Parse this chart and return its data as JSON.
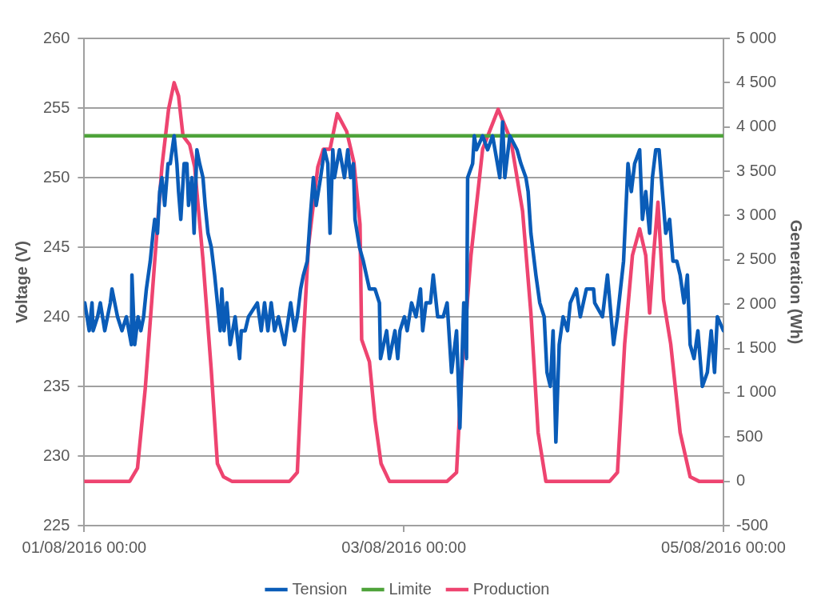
{
  "chart_data": {
    "type": "line",
    "ylabel": "Voltage (V)",
    "y2label": "Generation (Wh)",
    "xlim": [
      "2016-08-01T00:00",
      "2016-08-05T00:00"
    ],
    "xticks": [
      {
        "value": "2016-08-01T00:00",
        "label": "01/08/2016 00:00"
      },
      {
        "value": "2016-08-03T00:00",
        "label": "03/08/2016 00:00"
      },
      {
        "value": "2016-08-05T00:00",
        "label": "05/08/2016 00:00"
      }
    ],
    "ylim": [
      225,
      260
    ],
    "yticks": [
      225,
      230,
      235,
      240,
      245,
      250,
      255,
      260
    ],
    "y2lim": [
      -500,
      5000
    ],
    "y2ticks": [
      -500,
      0,
      500,
      {
        "value": 1000,
        "label": "1 000"
      },
      {
        "value": 1500,
        "label": "1 500"
      },
      {
        "value": 2000,
        "label": "2 000"
      },
      {
        "value": 2500,
        "label": "2 500"
      },
      {
        "value": 3000,
        "label": "3 000"
      },
      {
        "value": 3500,
        "label": "3 500"
      },
      {
        "value": 4000,
        "label": "4 000"
      },
      {
        "value": 4500,
        "label": "4 500"
      },
      {
        "value": 5000,
        "label": "5 000"
      }
    ],
    "grid": "y",
    "legend": "bottom",
    "marker": "none",
    "line_style": "solid",
    "series": [
      {
        "name": "Tension",
        "color": "#0a5cb8",
        "x": [
          "2016-08-01T00:05",
          "2016-08-01T00:45",
          "2016-08-01T01:10",
          "2016-08-01T01:20",
          "2016-08-01T02:00",
          "2016-08-01T02:25",
          "2016-08-01T03:05",
          "2016-08-01T03:30",
          "2016-08-01T03:55",
          "2016-08-01T04:10",
          "2016-08-01T04:35",
          "2016-08-01T05:00",
          "2016-08-01T05:40",
          "2016-08-01T06:20",
          "2016-08-01T07:05",
          "2016-08-01T07:10",
          "2016-08-01T07:35",
          "2016-08-01T08:05",
          "2016-08-01T08:30",
          "2016-08-01T08:55",
          "2016-08-01T09:20",
          "2016-08-01T09:55",
          "2016-08-01T10:20",
          "2016-08-01T10:35",
          "2016-08-01T11:00",
          "2016-08-01T11:20",
          "2016-08-01T11:40",
          "2016-08-01T12:05",
          "2016-08-01T12:35",
          "2016-08-01T12:55",
          "2016-08-01T13:30",
          "2016-08-01T13:55",
          "2016-08-01T14:10",
          "2016-08-01T14:30",
          "2016-08-01T15:00",
          "2016-08-01T15:25",
          "2016-08-01T15:40",
          "2016-08-01T16:10",
          "2016-08-01T16:30",
          "2016-08-01T16:55",
          "2016-08-01T17:20",
          "2016-08-01T17:50",
          "2016-08-01T18:10",
          "2016-08-01T18:35",
          "2016-08-01T19:05",
          "2016-08-01T19:35",
          "2016-08-01T20:25",
          "2016-08-01T20:40",
          "2016-08-01T21:00",
          "2016-08-01T21:25",
          "2016-08-01T21:55",
          "2016-08-01T22:40",
          "2016-08-01T23:20",
          "2016-08-01T23:35",
          "2016-08-02T00:10",
          "2016-08-02T00:40",
          "2016-08-02T02:00",
          "2016-08-02T02:35",
          "2016-08-02T03:05",
          "2016-08-02T03:35",
          "2016-08-02T04:05",
          "2016-08-02T04:35",
          "2016-08-02T05:10",
          "2016-08-02T06:05",
          "2016-08-02T07:00",
          "2016-08-02T07:35",
          "2016-08-02T08:00",
          "2016-08-02T08:30",
          "2016-08-02T08:55",
          "2016-08-02T09:30",
          "2016-08-02T09:55",
          "2016-08-02T10:25",
          "2016-08-02T10:50",
          "2016-08-02T11:30",
          "2016-08-02T12:05",
          "2016-08-02T12:35",
          "2016-08-02T12:55",
          "2016-08-02T13:20",
          "2016-08-02T13:35",
          "2016-08-02T14:20",
          "2016-08-02T15:05",
          "2016-08-02T15:35",
          "2016-08-02T16:00",
          "2016-08-02T16:25",
          "2016-08-02T16:40",
          "2016-08-02T17:20",
          "2016-08-02T17:55",
          "2016-08-02T18:50",
          "2016-08-02T19:40",
          "2016-08-02T20:20",
          "2016-08-02T20:30",
          "2016-08-02T21:25",
          "2016-08-02T21:50",
          "2016-08-02T22:40",
          "2016-08-02T23:05",
          "2016-08-02T23:25",
          "2016-08-03T00:05",
          "2016-08-03T00:30",
          "2016-08-03T01:10",
          "2016-08-03T01:50",
          "2016-08-03T02:30",
          "2016-08-03T02:50",
          "2016-08-03T03:20",
          "2016-08-03T04:00",
          "2016-08-03T04:25",
          "2016-08-03T05:05",
          "2016-08-03T05:55",
          "2016-08-03T06:30",
          "2016-08-03T07:10",
          "2016-08-03T07:55",
          "2016-08-03T08:25",
          "2016-08-03T09:00",
          "2016-08-03T09:25",
          "2016-08-03T09:35",
          "2016-08-03T10:20",
          "2016-08-03T10:35",
          "2016-08-03T10:55",
          "2016-08-03T11:50",
          "2016-08-03T12:35",
          "2016-08-03T13:20",
          "2016-08-03T14:25",
          "2016-08-03T14:50",
          "2016-08-03T15:10",
          "2016-08-03T15:55",
          "2016-08-03T17:00",
          "2016-08-03T17:35",
          "2016-08-03T18:20",
          "2016-08-03T18:40",
          "2016-08-03T19:05",
          "2016-08-03T19:50",
          "2016-08-03T20:25",
          "2016-08-03T21:05",
          "2016-08-03T21:30",
          "2016-08-03T22:00",
          "2016-08-03T22:25",
          "2016-08-03T22:50",
          "2016-08-03T23:20",
          "2016-08-03T23:55",
          "2016-08-04T00:35",
          "2016-08-04T01:00",
          "2016-08-04T01:55",
          "2016-08-04T02:30",
          "2016-08-04T03:25",
          "2016-08-04T04:30",
          "2016-08-04T04:40",
          "2016-08-04T05:50",
          "2016-08-04T06:35",
          "2016-08-04T07:30",
          "2016-08-04T08:05",
          "2016-08-04T09:00",
          "2016-08-04T09:40",
          "2016-08-04T10:10",
          "2016-08-04T10:40",
          "2016-08-04T11:25",
          "2016-08-04T11:50",
          "2016-08-04T12:20",
          "2016-08-04T12:55",
          "2016-08-04T13:20",
          "2016-08-04T13:50",
          "2016-08-04T14:20",
          "2016-08-04T14:40",
          "2016-08-04T15:20",
          "2016-08-04T15:55",
          "2016-08-04T16:25",
          "2016-08-04T17:00",
          "2016-08-04T17:30",
          "2016-08-04T18:05",
          "2016-08-04T18:35",
          "2016-08-04T19:00",
          "2016-08-04T19:35",
          "2016-08-04T20:10",
          "2016-08-04T20:50",
          "2016-08-04T21:35",
          "2016-08-04T22:10",
          "2016-08-04T22:40",
          "2016-08-04T23:05",
          "2016-08-05T00:00"
        ],
        "values": [
          241,
          239,
          241,
          239,
          240,
          241,
          239,
          240,
          241,
          242,
          241,
          240,
          239,
          240,
          238,
          243,
          238,
          240,
          239,
          240,
          242,
          244,
          246,
          247,
          246,
          249,
          250,
          248,
          251,
          251,
          253,
          251,
          249,
          247,
          251,
          251,
          248,
          250,
          246,
          252,
          251,
          250,
          248,
          246,
          245,
          243,
          239,
          242,
          239,
          241,
          238,
          240,
          237,
          239,
          239,
          240,
          241,
          239,
          241,
          239,
          241,
          239,
          240,
          238,
          241,
          239,
          240,
          242,
          243,
          244,
          247,
          250,
          248,
          250,
          252,
          251,
          246,
          252,
          250,
          252,
          250,
          252,
          250,
          251,
          247,
          245,
          244,
          242,
          242,
          241,
          237,
          239,
          237,
          239,
          237,
          239,
          240,
          239,
          241,
          240,
          242,
          239,
          241,
          241,
          243,
          240,
          240,
          241,
          236,
          239,
          232,
          241,
          237,
          250,
          251,
          253,
          252,
          253,
          252,
          253,
          250,
          254,
          250,
          253,
          252,
          251,
          250,
          249,
          246,
          243,
          241,
          240,
          236,
          235,
          239,
          231,
          238,
          240,
          239,
          241,
          242,
          240,
          242,
          242,
          241,
          240,
          243,
          238,
          240,
          244,
          251,
          249,
          251,
          252,
          247,
          249,
          246,
          250,
          252,
          252,
          250,
          246,
          247,
          244,
          244,
          243,
          241,
          243,
          238,
          237,
          239,
          235,
          236,
          239,
          236,
          240,
          239
        ]
      },
      {
        "name": "Limite",
        "color": "#4ea33a",
        "x": [
          "2016-08-01T00:00",
          "2016-08-05T00:00"
        ],
        "values": [
          253,
          253
        ]
      },
      {
        "name": "Production",
        "color": "#ee4470",
        "axis": "y2",
        "x": [
          "2016-08-01T00:00",
          "2016-08-01T06:50",
          "2016-08-01T08:00",
          "2016-08-01T09:10",
          "2016-08-01T10:30",
          "2016-08-01T11:40",
          "2016-08-01T12:40",
          "2016-08-01T13:30",
          "2016-08-01T14:10",
          "2016-08-01T14:50",
          "2016-08-01T15:50",
          "2016-08-01T16:35",
          "2016-08-01T17:50",
          "2016-08-01T19:05",
          "2016-08-01T20:00",
          "2016-08-01T20:55",
          "2016-08-01T22:10",
          "2016-08-02T06:50",
          "2016-08-02T08:00",
          "2016-08-02T08:55",
          "2016-08-02T09:40",
          "2016-08-02T11:05",
          "2016-08-02T11:55",
          "2016-08-02T12:55",
          "2016-08-02T14:00",
          "2016-08-02T15:25",
          "2016-08-02T16:30",
          "2016-08-02T17:25",
          "2016-08-02T17:40",
          "2016-08-02T18:50",
          "2016-08-02T19:40",
          "2016-08-02T20:35",
          "2016-08-02T21:50",
          "2016-08-03T06:30",
          "2016-08-03T07:55",
          "2016-08-03T08:40",
          "2016-08-03T10:05",
          "2016-08-03T11:50",
          "2016-08-03T14:10",
          "2016-08-03T16:05",
          "2016-08-03T17:50",
          "2016-08-03T19:05",
          "2016-08-03T20:10",
          "2016-08-03T21:20",
          "2016-08-04T06:55",
          "2016-08-04T08:05",
          "2016-08-04T09:10",
          "2016-08-04T10:20",
          "2016-08-04T11:25",
          "2016-08-04T12:20",
          "2016-08-04T12:55",
          "2016-08-04T13:30",
          "2016-08-04T14:10",
          "2016-08-04T15:00",
          "2016-08-04T16:05",
          "2016-08-04T17:30",
          "2016-08-04T19:00",
          "2016-08-04T20:20",
          "2016-08-05T00:00"
        ],
        "values": [
          0,
          0,
          150,
          1050,
          2400,
          3550,
          4200,
          4500,
          4350,
          3900,
          3800,
          3550,
          2500,
          1250,
          200,
          50,
          0,
          0,
          100,
          1600,
          2650,
          3550,
          3750,
          3750,
          4150,
          3950,
          3600,
          2900,
          1600,
          1350,
          700,
          200,
          0,
          0,
          100,
          1200,
          2550,
          3750,
          4200,
          3850,
          3050,
          1900,
          550,
          0,
          0,
          100,
          1550,
          2550,
          2850,
          2550,
          1900,
          2550,
          3150,
          2050,
          1550,
          550,
          50,
          0,
          0
        ]
      }
    ]
  }
}
